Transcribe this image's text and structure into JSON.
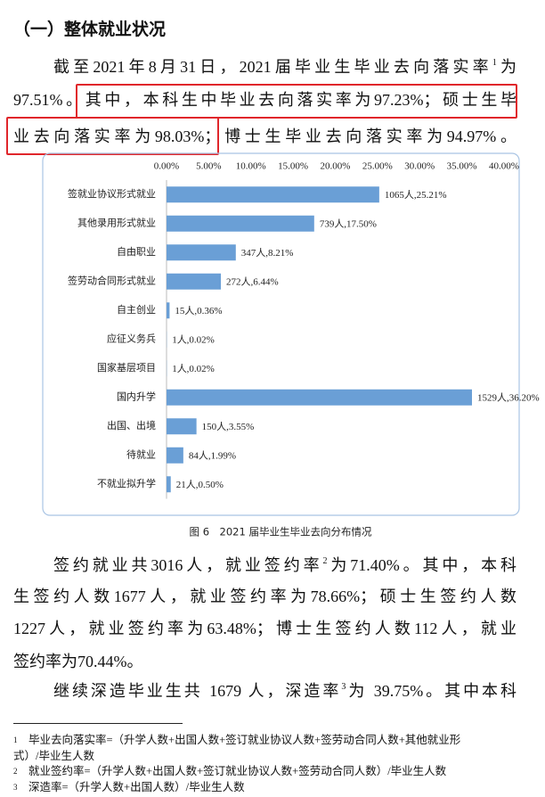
{
  "heading": "（一）整体就业状况",
  "paragraph_1": {
    "lines": [
      [
        "截至2021年8月31日，2021届毕业生毕业去向落实率",
        "1",
        "为"
      ],
      [
        "97.51%。",
        "其中，本科生中毕业去向落实率为97.23%；硕士生毕"
      ],
      [
        "业去向落实率为98.03%；",
        "博士生毕业去向落实率为94.97%。"
      ]
    ]
  },
  "chart_data": {
    "type": "hbar",
    "categories": [
      "签就业协议形式就业",
      "其他录用形式就业",
      "自由职业",
      "签劳动合同形式就业",
      "自主创业",
      "应征义务兵",
      "国家基层项目",
      "国内升学",
      "出国、出境",
      "待就业",
      "不就业拟升学"
    ],
    "values": [
      25.21,
      17.5,
      8.21,
      6.44,
      0.36,
      0.02,
      0.02,
      36.2,
      3.55,
      1.99,
      0.5
    ],
    "value_labels": [
      "1065人,25.21%",
      "739人,17.50%",
      "347人,8.21%",
      "272人,6.44%",
      "15人,0.36%",
      "1人,0.02%",
      "1人,0.02%",
      "1529人,36.20%",
      "150人,3.55%",
      "84人,1.99%",
      "21人,0.50%"
    ],
    "color": "#6a9fd6",
    "xlim": [
      0,
      40
    ],
    "xticks": [
      {
        "value": 0,
        "label": "0.00%"
      },
      {
        "value": 5,
        "label": "5.00%"
      },
      {
        "value": 10,
        "label": "10.00%"
      },
      {
        "value": 15,
        "label": "15.00%"
      },
      {
        "value": 20,
        "label": "20.00%"
      },
      {
        "value": 25,
        "label": "25.00%"
      },
      {
        "value": 30,
        "label": "30.00%"
      },
      {
        "value": 35,
        "label": "35.00%"
      },
      {
        "value": 40,
        "label": "40.00%"
      }
    ],
    "caption": "图 6　2021 届毕业生毕业去向分布情况"
  },
  "paragraph_2": {
    "lines": [
      [
        "签约就业共3016人，就业签约率",
        "2",
        "为71.40%。其中，本科"
      ],
      [
        "生签约人数1677人，就业签约率为78.66%；硕士生签约人数"
      ],
      [
        "1227人，就业签约率为63.48%；博士生签约人数112人，就业"
      ],
      [
        "签约率为70.44%。"
      ]
    ]
  },
  "paragraph_3": {
    "lines": [
      [
        "继续深造毕业生共 1679 人，深造率",
        "3",
        "为 39.75%。其中本科"
      ]
    ]
  },
  "footnotes": [
    {
      "marker": "1",
      "lines": [
        "毕业去向落实率=（升学人数+出国人数+签订就业协议人数+签劳动合同人数+其他就业形",
        "式）/毕业生人数"
      ]
    },
    {
      "marker": "2",
      "lines": [
        "就业签约率=（升学人数+出国人数+签订就业协议人数+签劳动合同人数）/毕业生人数"
      ]
    },
    {
      "marker": "3",
      "lines": [
        "深造率=（升学人数+出国人数）/毕业生人数"
      ]
    }
  ]
}
